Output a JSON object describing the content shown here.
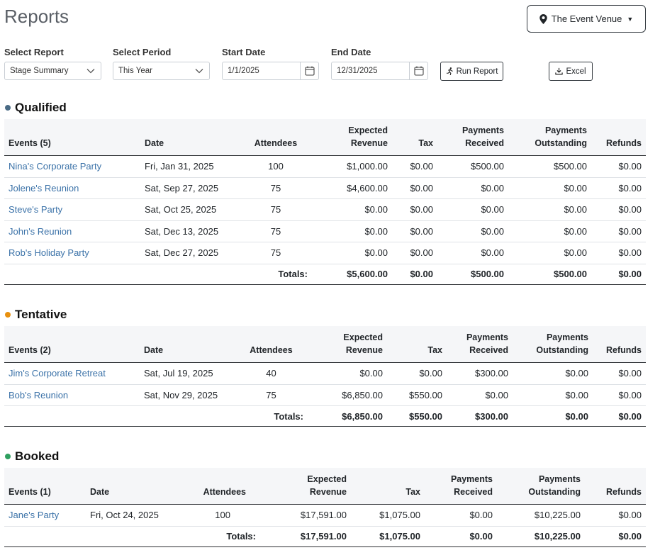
{
  "page": {
    "title": "Reports"
  },
  "venue": {
    "label": "The Event Venue",
    "icon": "map-pin-icon"
  },
  "filters": {
    "report": {
      "label": "Select Report",
      "value": "Stage Summary"
    },
    "period": {
      "label": "Select Period",
      "value": "This Year"
    },
    "start": {
      "label": "Start Date",
      "value": "1/1/2025"
    },
    "end": {
      "label": "End Date",
      "value": "12/31/2025"
    },
    "run_label": "Run Report",
    "excel_label": "Excel"
  },
  "columns": {
    "date": "Date",
    "attendees": "Attendees",
    "expected_revenue": [
      "Expected",
      "Revenue"
    ],
    "tax": "Tax",
    "payments_received": [
      "Payments",
      "Received"
    ],
    "payments_outstanding": [
      "Payments",
      "Outstanding"
    ],
    "refunds": "Refunds",
    "totals": "Totals:"
  },
  "colors": {
    "qualified": "#4a6b85",
    "tentative": "#e8900e",
    "booked": "#2e9f5f",
    "link": "#3b72a8"
  },
  "sections": {
    "qualified": {
      "title": "Qualified",
      "events_header": "Events (5)",
      "rows": [
        {
          "name": "Nina's Corporate Party",
          "date": "Fri, Jan 31, 2025",
          "attendees": "100",
          "expected": "$1,000.00",
          "tax": "$0.00",
          "received": "$500.00",
          "outstanding": "$500.00",
          "refunds": "$0.00"
        },
        {
          "name": "Jolene's Reunion",
          "date": "Sat, Sep 27, 2025",
          "attendees": "75",
          "expected": "$4,600.00",
          "tax": "$0.00",
          "received": "$0.00",
          "outstanding": "$0.00",
          "refunds": "$0.00"
        },
        {
          "name": "Steve's Party",
          "date": "Sat, Oct 25, 2025",
          "attendees": "75",
          "expected": "$0.00",
          "tax": "$0.00",
          "received": "$0.00",
          "outstanding": "$0.00",
          "refunds": "$0.00"
        },
        {
          "name": "John's Reunion",
          "date": "Sat, Dec 13, 2025",
          "attendees": "75",
          "expected": "$0.00",
          "tax": "$0.00",
          "received": "$0.00",
          "outstanding": "$0.00",
          "refunds": "$0.00"
        },
        {
          "name": "Rob's Holiday Party",
          "date": "Sat, Dec 27, 2025",
          "attendees": "75",
          "expected": "$0.00",
          "tax": "$0.00",
          "received": "$0.00",
          "outstanding": "$0.00",
          "refunds": "$0.00"
        }
      ],
      "totals": {
        "expected": "$5,600.00",
        "tax": "$0.00",
        "received": "$500.00",
        "outstanding": "$500.00",
        "refunds": "$0.00"
      }
    },
    "tentative": {
      "title": "Tentative",
      "events_header": "Events (2)",
      "rows": [
        {
          "name": "Jim's Corporate Retreat",
          "date": "Sat, Jul 19, 2025",
          "attendees": "40",
          "expected": "$0.00",
          "tax": "$0.00",
          "received": "$300.00",
          "outstanding": "$0.00",
          "refunds": "$0.00"
        },
        {
          "name": "Bob's Reunion",
          "date": "Sat, Nov 29, 2025",
          "attendees": "75",
          "expected": "$6,850.00",
          "tax": "$550.00",
          "received": "$0.00",
          "outstanding": "$0.00",
          "refunds": "$0.00"
        }
      ],
      "totals": {
        "expected": "$6,850.00",
        "tax": "$550.00",
        "received": "$300.00",
        "outstanding": "$0.00",
        "refunds": "$0.00"
      }
    },
    "booked": {
      "title": "Booked",
      "events_header": "Events (1)",
      "rows": [
        {
          "name": "Jane's Party",
          "date": "Fri, Oct 24, 2025",
          "attendees": "100",
          "expected": "$17,591.00",
          "tax": "$1,075.00",
          "received": "$0.00",
          "outstanding": "$10,225.00",
          "refunds": "$0.00"
        }
      ],
      "totals": {
        "expected": "$17,591.00",
        "tax": "$1,075.00",
        "received": "$0.00",
        "outstanding": "$10,225.00",
        "refunds": "$0.00"
      }
    }
  }
}
